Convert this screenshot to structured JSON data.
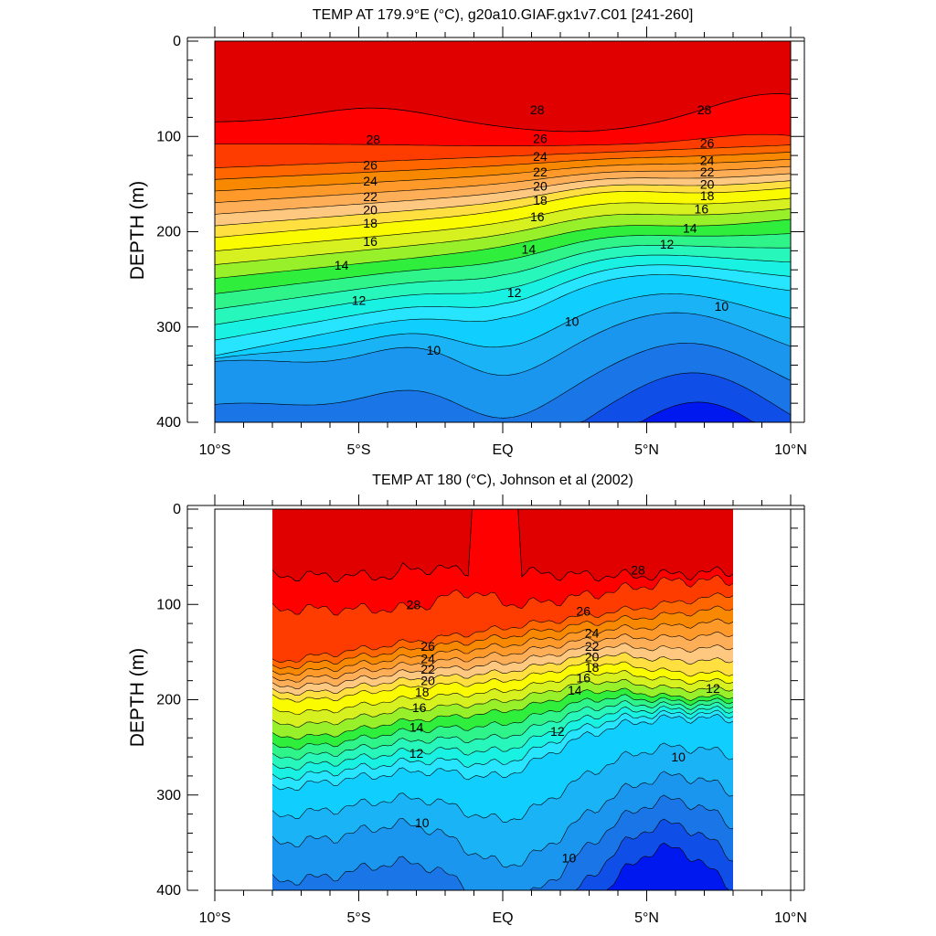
{
  "colors": {
    "levels": [
      "#0018f0",
      "#0f4fe8",
      "#1a76e6",
      "#1a96ee",
      "#1ab3f5",
      "#10cfff",
      "#27e4ff",
      "#19f2e3",
      "#28f7bb",
      "#2ff48a",
      "#2fef3c",
      "#97f02a",
      "#d6f020",
      "#fafa00",
      "#ffe040",
      "#ffc880",
      "#ffae58",
      "#ff9a2a",
      "#f88800",
      "#ff6600",
      "#ff3c00",
      "#ff0000",
      "#e00000"
    ],
    "axis": "#000000"
  },
  "chart_data": [
    {
      "type": "contour",
      "title": "TEMP AT 179.9°E (°C), g20a10.GIAF.gx1v7.C01 [241-260]",
      "ylabel": "DEPTH (m)",
      "xlabel": "",
      "x_tick_labels": [
        "10°S",
        "5°S",
        "EQ",
        "5°N",
        "10°N"
      ],
      "x_ticks": [
        -10,
        -5,
        0,
        5,
        10
      ],
      "y_tick_labels": [
        "0",
        "100",
        "200",
        "300",
        "400"
      ],
      "y_ticks": [
        0,
        100,
        200,
        300,
        400
      ],
      "xlim": [
        -10,
        10
      ],
      "ylim": [
        400,
        0
      ],
      "data_xlim": [
        -10,
        10
      ],
      "levels_start": 7,
      "contour_labels": [
        {
          "text": "28",
          "lat": -4.5,
          "depth": 103
        },
        {
          "text": "26",
          "lat": -4.6,
          "depth": 130
        },
        {
          "text": "24",
          "lat": -4.6,
          "depth": 147
        },
        {
          "text": "22",
          "lat": -4.6,
          "depth": 163
        },
        {
          "text": "20",
          "lat": -4.6,
          "depth": 177
        },
        {
          "text": "18",
          "lat": -4.6,
          "depth": 191
        },
        {
          "text": "16",
          "lat": -4.6,
          "depth": 210
        },
        {
          "text": "14",
          "lat": -5.6,
          "depth": 235
        },
        {
          "text": "12",
          "lat": -5.0,
          "depth": 272
        },
        {
          "text": "10",
          "lat": -2.4,
          "depth": 324
        },
        {
          "text": "28",
          "lat": 1.2,
          "depth": 72
        },
        {
          "text": "26",
          "lat": 1.3,
          "depth": 102
        },
        {
          "text": "24",
          "lat": 1.3,
          "depth": 121
        },
        {
          "text": "22",
          "lat": 1.3,
          "depth": 137
        },
        {
          "text": "20",
          "lat": 1.3,
          "depth": 152
        },
        {
          "text": "18",
          "lat": 1.3,
          "depth": 167
        },
        {
          "text": "16",
          "lat": 1.2,
          "depth": 184
        },
        {
          "text": "14",
          "lat": 0.9,
          "depth": 218
        },
        {
          "text": "12",
          "lat": 0.4,
          "depth": 264
        },
        {
          "text": "10",
          "lat": 2.4,
          "depth": 294
        },
        {
          "text": "28",
          "lat": 7.0,
          "depth": 72
        },
        {
          "text": "26",
          "lat": 7.1,
          "depth": 107
        },
        {
          "text": "24",
          "lat": 7.1,
          "depth": 125
        },
        {
          "text": "22",
          "lat": 7.1,
          "depth": 137
        },
        {
          "text": "20",
          "lat": 7.1,
          "depth": 150
        },
        {
          "text": "18",
          "lat": 7.1,
          "depth": 162
        },
        {
          "text": "16",
          "lat": 6.9,
          "depth": 176
        },
        {
          "text": "14",
          "lat": 6.5,
          "depth": 196
        },
        {
          "text": "12",
          "lat": 5.7,
          "depth": 213
        },
        {
          "text": "10",
          "lat": 7.6,
          "depth": 278
        }
      ]
    },
    {
      "type": "contour",
      "title": "TEMP AT 180 (°C), Johnson et al (2002)",
      "ylabel": "DEPTH (m)",
      "xlabel": "",
      "x_tick_labels": [
        "10°S",
        "5°S",
        "EQ",
        "5°N",
        "10°N"
      ],
      "x_ticks": [
        -10,
        -5,
        0,
        5,
        10
      ],
      "y_tick_labels": [
        "0",
        "100",
        "200",
        "300",
        "400"
      ],
      "y_ticks": [
        0,
        100,
        200,
        300,
        400
      ],
      "xlim": [
        -10,
        10
      ],
      "ylim": [
        400,
        0
      ],
      "data_xlim": [
        -8,
        8
      ],
      "levels_start": 7,
      "contour_labels": [
        {
          "text": "28",
          "lat": -3.1,
          "depth": 100
        },
        {
          "text": "26",
          "lat": -2.6,
          "depth": 144
        },
        {
          "text": "24",
          "lat": -2.6,
          "depth": 157
        },
        {
          "text": "22",
          "lat": -2.6,
          "depth": 168
        },
        {
          "text": "20",
          "lat": -2.6,
          "depth": 180
        },
        {
          "text": "18",
          "lat": -2.8,
          "depth": 192
        },
        {
          "text": "16",
          "lat": -2.9,
          "depth": 208
        },
        {
          "text": "14",
          "lat": -3.0,
          "depth": 229
        },
        {
          "text": "12",
          "lat": -3.0,
          "depth": 256
        },
        {
          "text": "10",
          "lat": -2.8,
          "depth": 329
        },
        {
          "text": "28",
          "lat": 4.7,
          "depth": 64
        },
        {
          "text": "26",
          "lat": 2.8,
          "depth": 107
        },
        {
          "text": "24",
          "lat": 3.1,
          "depth": 130
        },
        {
          "text": "22",
          "lat": 3.1,
          "depth": 144
        },
        {
          "text": "20",
          "lat": 3.1,
          "depth": 155
        },
        {
          "text": "18",
          "lat": 3.1,
          "depth": 166
        },
        {
          "text": "16",
          "lat": 2.8,
          "depth": 177
        },
        {
          "text": "14",
          "lat": 2.5,
          "depth": 190
        },
        {
          "text": "12",
          "lat": 1.9,
          "depth": 233
        },
        {
          "text": "10",
          "lat": 6.1,
          "depth": 260
        },
        {
          "text": "10",
          "lat": 2.3,
          "depth": 366
        },
        {
          "text": "12",
          "lat": 7.3,
          "depth": 188
        }
      ]
    }
  ]
}
